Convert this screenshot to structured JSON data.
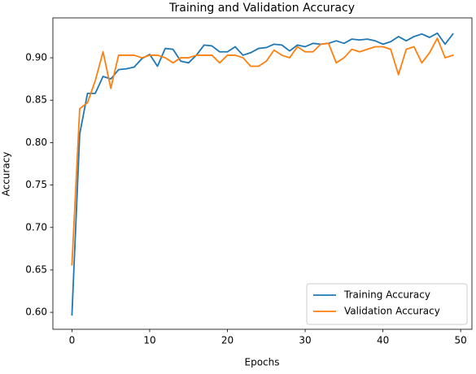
{
  "chart_data": {
    "type": "line",
    "title": "Training and Validation Accuracy",
    "x_label": "Epochs",
    "y_label": "Accuracy",
    "x": [
      0,
      1,
      2,
      3,
      4,
      5,
      6,
      7,
      8,
      9,
      10,
      11,
      12,
      13,
      14,
      15,
      16,
      17,
      18,
      19,
      20,
      21,
      22,
      23,
      24,
      25,
      26,
      27,
      28,
      29,
      30,
      31,
      32,
      33,
      34,
      35,
      36,
      37,
      38,
      39,
      40,
      41,
      42,
      43,
      44,
      45,
      46,
      47,
      48,
      49
    ],
    "series": [
      {
        "name": "Training Accuracy",
        "color": "#1f77b4",
        "values": [
          0.597,
          0.81,
          0.858,
          0.858,
          0.878,
          0.875,
          0.886,
          0.887,
          0.889,
          0.899,
          0.904,
          0.89,
          0.911,
          0.91,
          0.896,
          0.894,
          0.903,
          0.915,
          0.914,
          0.907,
          0.907,
          0.913,
          0.903,
          0.906,
          0.911,
          0.912,
          0.916,
          0.915,
          0.908,
          0.915,
          0.913,
          0.917,
          0.916,
          0.917,
          0.92,
          0.917,
          0.922,
          0.921,
          0.922,
          0.92,
          0.916,
          0.919,
          0.925,
          0.92,
          0.925,
          0.928,
          0.924,
          0.929,
          0.916,
          0.928
        ]
      },
      {
        "name": "Validation Accuracy",
        "color": "#ff7f0e",
        "values": [
          0.656,
          0.84,
          0.847,
          0.873,
          0.907,
          0.864,
          0.903,
          0.903,
          0.903,
          0.9,
          0.903,
          0.903,
          0.9,
          0.894,
          0.9,
          0.9,
          0.903,
          0.903,
          0.903,
          0.894,
          0.903,
          0.903,
          0.9,
          0.89,
          0.89,
          0.896,
          0.909,
          0.903,
          0.9,
          0.913,
          0.907,
          0.907,
          0.916,
          0.917,
          0.894,
          0.9,
          0.91,
          0.907,
          0.91,
          0.913,
          0.913,
          0.91,
          0.88,
          0.91,
          0.913,
          0.894,
          0.906,
          0.923,
          0.9,
          0.903
        ]
      }
    ],
    "xlim": [
      -2.45,
      51.45
    ],
    "xticks": [
      0,
      10,
      20,
      30,
      40,
      50
    ],
    "ylim": [
      0.58,
      0.947
    ],
    "yticks": [
      {
        "value": 0.6,
        "label": "0.60"
      },
      0.65,
      {
        "value": 0.7,
        "label": "0.70"
      },
      0.75,
      {
        "value": 0.8,
        "label": "0.80"
      },
      0.85,
      {
        "value": 0.9,
        "label": "0.90"
      }
    ],
    "legend": "lower right",
    "grid": false
  }
}
